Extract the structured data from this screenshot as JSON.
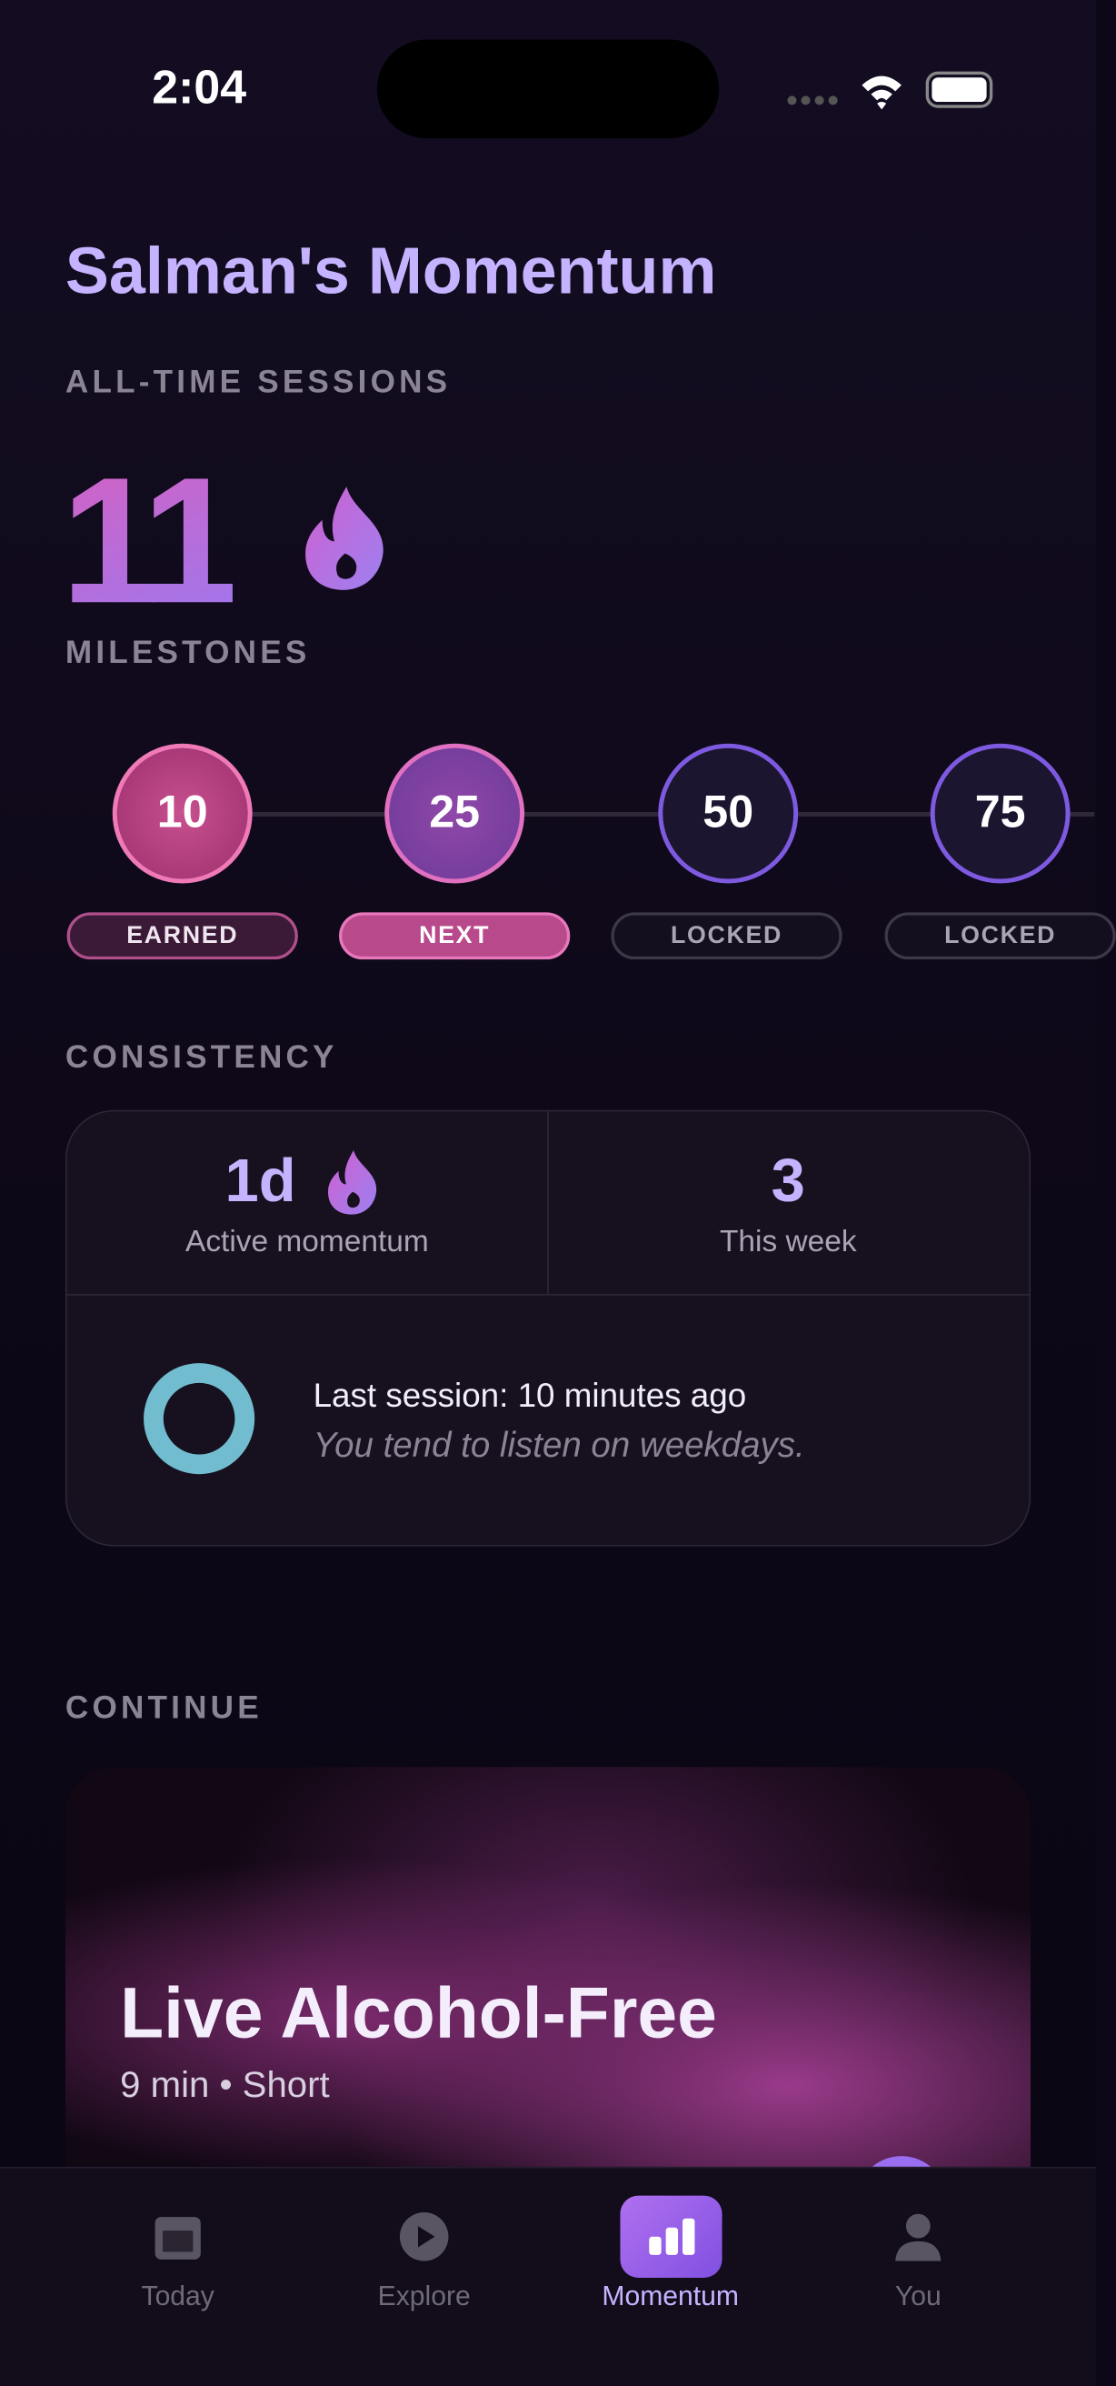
{
  "status_bar": {
    "time": "2:04"
  },
  "header": {
    "title": "Salman's Momentum"
  },
  "sessions": {
    "label": "ALL-TIME SESSIONS",
    "count": "11"
  },
  "milestones": {
    "label": "MILESTONES",
    "items": [
      {
        "value": "10",
        "status": "EARNED"
      },
      {
        "value": "25",
        "status": "NEXT"
      },
      {
        "value": "50",
        "status": "LOCKED"
      },
      {
        "value": "75",
        "status": "LOCKED"
      }
    ]
  },
  "consistency": {
    "label": "CONSISTENCY",
    "streak": "1d",
    "streak_label": "Active momentum",
    "week": "3",
    "week_label": "This week",
    "last_session": "Last session: 10 minutes ago",
    "pattern": "You tend to listen on weekdays."
  },
  "continue": {
    "label": "CONTINUE",
    "title": "Live Alcohol-Free",
    "meta": "9 min • Short"
  },
  "tabs": [
    "Today",
    "Explore",
    "Momentum",
    "You"
  ]
}
